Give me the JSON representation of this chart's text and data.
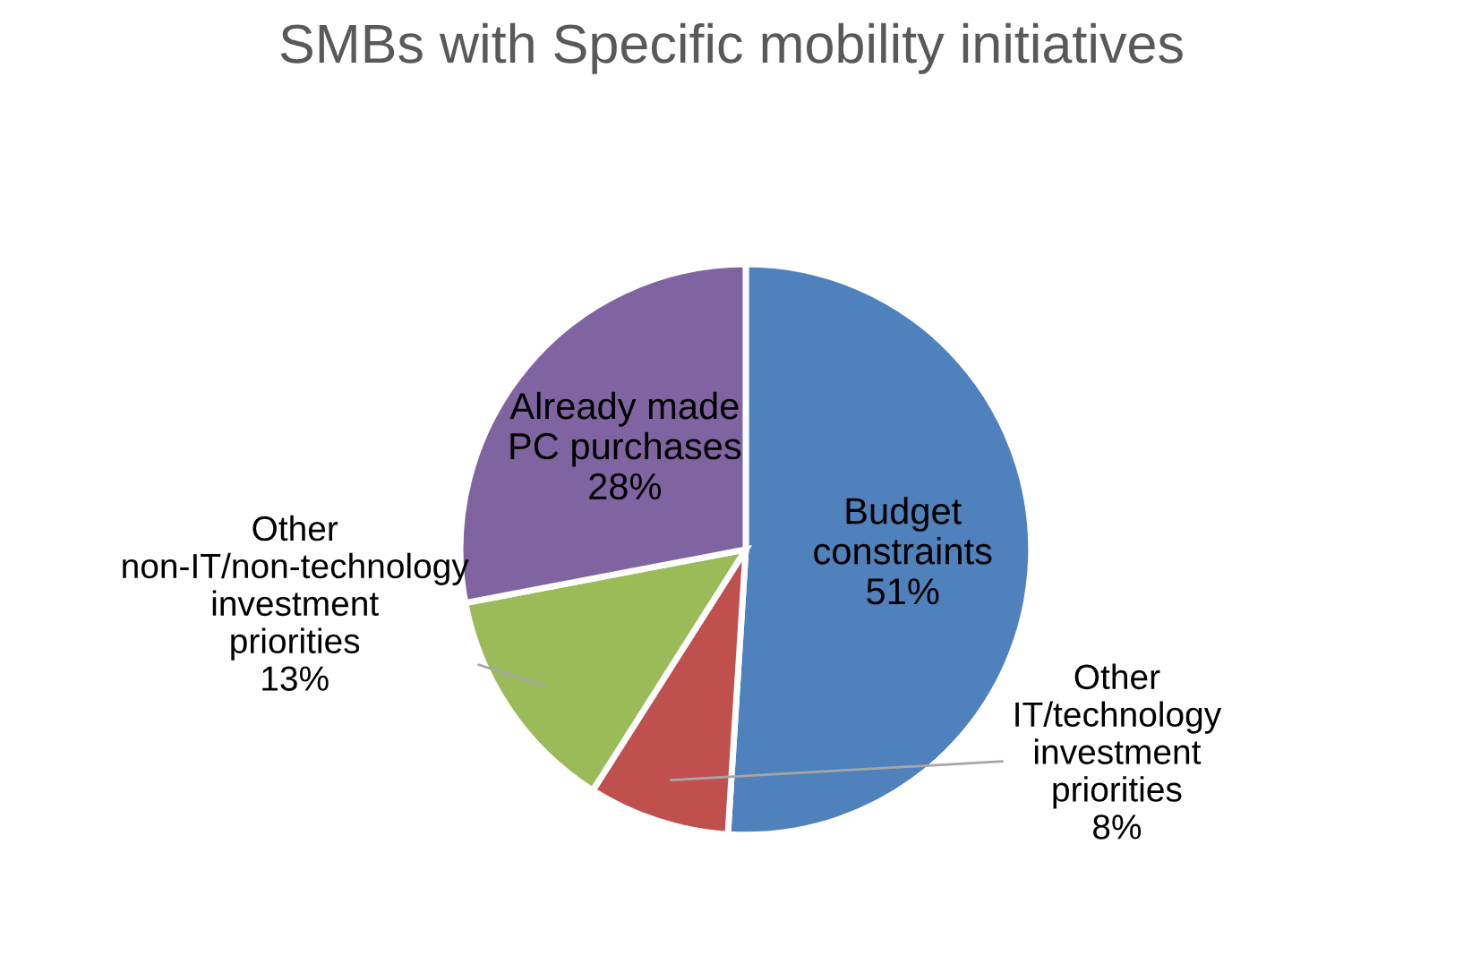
{
  "chart_data": {
    "type": "pie",
    "title": "SMBs with Specific mobility initiatives",
    "categories": [
      "Budget constraints",
      "Other IT/technology investment priorities",
      "Other non-IT/non-technology investment priorities",
      "Already made PC purchases"
    ],
    "values": [
      51,
      8,
      13,
      28
    ],
    "colors": [
      "#4f81bd",
      "#c0504d",
      "#9bbb59",
      "#8064a2"
    ],
    "value_labels": [
      "51%",
      "8%",
      "13%",
      "28%"
    ],
    "legend": false
  }
}
